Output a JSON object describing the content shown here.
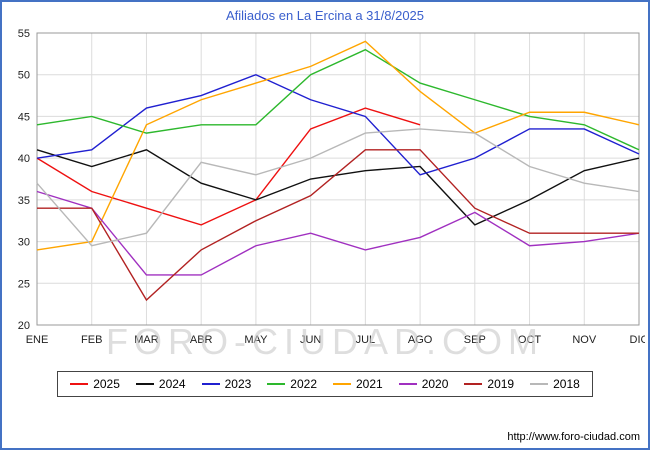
{
  "title": "Afiliados en La Ercina a 31/8/2025",
  "watermark": "FORO-CIUDAD.COM",
  "footer_url": "http://www.foro-ciudad.com",
  "colors": {
    "frame": "#4472c4",
    "title": "#3a5fcd",
    "grid": "#dcdcdc",
    "plot_border": "#999999",
    "axis_text": "#222222"
  },
  "chart_data": {
    "type": "line",
    "title": "Afiliados en La Ercina a 31/8/2025",
    "categories": [
      "ENE",
      "FEB",
      "MAR",
      "ABR",
      "MAY",
      "JUN",
      "JUL",
      "AGO",
      "SEP",
      "OCT",
      "NOV",
      "DIC"
    ],
    "ylim": [
      20,
      55
    ],
    "yticks": [
      20,
      25,
      30,
      35,
      40,
      45,
      50,
      55
    ],
    "grid": true,
    "legend_position": "bottom",
    "series": [
      {
        "name": "2025",
        "color": "#ee1111",
        "values": [
          40,
          36,
          34,
          32,
          35,
          43.5,
          46,
          44
        ]
      },
      {
        "name": "2024",
        "color": "#111111",
        "values": [
          41,
          39,
          41,
          37,
          35,
          37.5,
          38.5,
          39,
          32,
          35,
          38.5,
          40
        ]
      },
      {
        "name": "2023",
        "color": "#2020d0",
        "values": [
          40,
          41,
          46,
          47.5,
          50,
          47,
          45,
          38,
          40,
          43.5,
          43.5,
          40.5
        ]
      },
      {
        "name": "2022",
        "color": "#2db82d",
        "values": [
          44,
          45,
          43,
          44,
          44,
          50,
          53,
          49,
          47,
          45,
          44,
          41
        ]
      },
      {
        "name": "2021",
        "color": "#ffa500",
        "values": [
          29,
          30,
          44,
          47,
          49,
          51,
          54,
          48,
          43,
          45.5,
          45.5,
          44
        ]
      },
      {
        "name": "2020",
        "color": "#a030c0",
        "values": [
          36,
          34,
          26,
          26,
          29.5,
          31,
          29,
          30.5,
          33.5,
          29.5,
          30,
          31
        ]
      },
      {
        "name": "2019",
        "color": "#b22222",
        "values": [
          34,
          34,
          23,
          29,
          32.5,
          35.5,
          41,
          41,
          34,
          31,
          31,
          31
        ]
      },
      {
        "name": "2018",
        "color": "#b8b8b8",
        "values": [
          37,
          29.5,
          31,
          39.5,
          38,
          40,
          43,
          43.5,
          43,
          39,
          37,
          36
        ]
      }
    ]
  }
}
